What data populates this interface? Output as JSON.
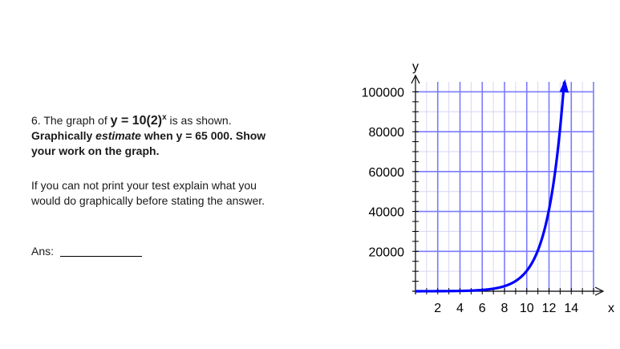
{
  "question": {
    "number": "6.",
    "intro": "The graph of",
    "equation_base": "y = 10(2)",
    "equation_exp": "x",
    "intro_end": "is as shown.",
    "line2_a": "Graphically",
    "line2_emph": "estimate",
    "line2_b": "when y = 65 000.  Show",
    "line3": "your work on the graph."
  },
  "instructions": {
    "line1": "If you can not print your test explain what you",
    "line2": "would do graphically before stating the answer."
  },
  "answer": {
    "label": "Ans:"
  },
  "chart_data": {
    "type": "line",
    "title": "",
    "xlabel": "x",
    "ylabel": "y",
    "xlim": [
      0,
      16
    ],
    "ylim": [
      0,
      105000
    ],
    "x_ticks": [
      2,
      4,
      6,
      8,
      10,
      12,
      14
    ],
    "y_ticks": [
      20000,
      40000,
      60000,
      80000,
      100000
    ],
    "grid": true,
    "colors": {
      "curve": "#0000ff",
      "major_grid": "#7b7bff",
      "minor_grid": "#d6d6f5",
      "axis": "#000000"
    },
    "series": [
      {
        "equation": "y = 10(2)^x",
        "x": [
          0,
          2,
          4,
          6,
          8,
          9,
          10,
          11,
          11.5,
          12,
          12.5,
          13,
          13.36
        ],
        "values": [
          10,
          40,
          160,
          640,
          2560,
          5120,
          10240,
          20480,
          28963,
          40960,
          57926,
          81920,
          105000
        ]
      }
    ]
  }
}
